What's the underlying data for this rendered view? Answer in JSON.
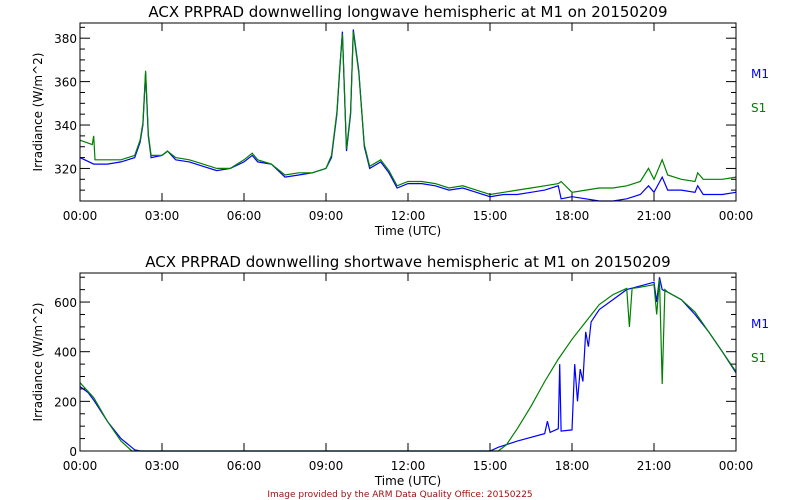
{
  "colors": {
    "M1": "#0000ff",
    "S1": "#008000",
    "credit": "#a01010"
  },
  "credit": "Image provided by the ARM Data Quality Office: 20150225",
  "chart_data": [
    {
      "type": "line",
      "title": "ACX PRPRAD downwelling longwave hemispheric at M1 on 20150209",
      "xlabel": "Time (UTC)",
      "ylabel": "Irradiance (W/m^2)",
      "xlim": [
        0,
        24
      ],
      "ylim": [
        305,
        387
      ],
      "xticks": [
        0,
        3,
        6,
        9,
        12,
        15,
        18,
        21,
        24
      ],
      "xtick_labels": [
        "00:00",
        "03:00",
        "06:00",
        "09:00",
        "12:00",
        "15:00",
        "18:00",
        "21:00",
        "00:00"
      ],
      "yticks": [
        320,
        340,
        360,
        380
      ],
      "ytick_labels": [
        "320",
        "340",
        "360",
        "380"
      ],
      "legend": [
        "M1",
        "S1"
      ],
      "legend_placement": "right",
      "series": [
        {
          "name": "M1",
          "color": "#0000ff",
          "x": [
            0,
            0.5,
            1,
            1.5,
            2,
            2.2,
            2.3,
            2.4,
            2.5,
            2.6,
            3,
            3.2,
            3.5,
            4,
            4.5,
            5,
            5.5,
            6,
            6.3,
            6.5,
            7,
            7.5,
            8,
            8.5,
            9,
            9.2,
            9.4,
            9.5,
            9.6,
            9.75,
            9.9,
            10,
            10.2,
            10.4,
            10.6,
            11,
            11.3,
            11.6,
            12,
            12.5,
            13,
            13.5,
            14,
            14.5,
            15,
            15.5,
            16,
            16.5,
            17,
            17.5,
            17.6,
            18,
            18.5,
            19,
            19.5,
            20,
            20.5,
            20.8,
            21,
            21.3,
            21.5,
            22,
            22.5,
            22.6,
            22.8,
            23.5,
            24
          ],
          "y": [
            325,
            322,
            322,
            323,
            325,
            332,
            340,
            364,
            335,
            325,
            326,
            328,
            324,
            323,
            321,
            319,
            320,
            323,
            326,
            323,
            322,
            316,
            317,
            318,
            320,
            325,
            345,
            365,
            383,
            328,
            345,
            384,
            365,
            330,
            320,
            323,
            318,
            311,
            313,
            313,
            312,
            310,
            311,
            309,
            307,
            308,
            308,
            309,
            310,
            312,
            306,
            307,
            306,
            305,
            305,
            306,
            308,
            312,
            309,
            316,
            310,
            310,
            309,
            312,
            308,
            308,
            309
          ]
        },
        {
          "name": "S1",
          "color": "#008000",
          "x": [
            0,
            0.45,
            0.5,
            0.55,
            1,
            1.5,
            2,
            2.2,
            2.3,
            2.4,
            2.5,
            2.6,
            3,
            3.2,
            3.5,
            4,
            4.5,
            5,
            5.5,
            6,
            6.3,
            6.5,
            7,
            7.5,
            8,
            8.5,
            9,
            9.2,
            9.4,
            9.5,
            9.6,
            9.75,
            9.9,
            10,
            10.2,
            10.4,
            10.6,
            11,
            11.3,
            11.6,
            12,
            12.5,
            13,
            13.5,
            14,
            14.5,
            15,
            15.5,
            16,
            16.5,
            17,
            17.5,
            17.6,
            18,
            18.5,
            19,
            19.5,
            20,
            20.5,
            20.8,
            21,
            21.3,
            21.5,
            22,
            22.5,
            22.6,
            22.8,
            23.5,
            24
          ],
          "y": [
            333,
            331,
            335,
            324,
            324,
            324,
            326,
            333,
            341,
            365,
            336,
            326,
            326,
            328,
            325,
            324,
            322,
            320,
            320,
            324,
            327,
            324,
            322,
            317,
            318,
            318,
            320,
            326,
            346,
            366,
            382,
            329,
            346,
            383,
            364,
            331,
            321,
            324,
            319,
            312,
            314,
            314,
            313,
            311,
            312,
            310,
            308,
            309,
            310,
            311,
            312,
            313,
            314,
            309,
            310,
            311,
            311,
            312,
            314,
            320,
            315,
            324,
            317,
            315,
            314,
            318,
            315,
            315,
            316
          ]
        }
      ]
    },
    {
      "type": "line",
      "title": "ACX PRPRAD downwelling shortwave hemispheric at M1 on 20150209",
      "xlabel": "Time (UTC)",
      "ylabel": "Irradiance (W/m^2)",
      "xlim": [
        0,
        24
      ],
      "ylim": [
        0,
        717
      ],
      "xticks": [
        0,
        3,
        6,
        9,
        12,
        15,
        18,
        21,
        24
      ],
      "xtick_labels": [
        "00:00",
        "03:00",
        "06:00",
        "09:00",
        "12:00",
        "15:00",
        "18:00",
        "21:00",
        "00:00"
      ],
      "yticks": [
        0,
        200,
        400,
        600
      ],
      "ytick_labels": [
        "0",
        "200",
        "400",
        "600"
      ],
      "legend": [
        "M1",
        "S1"
      ],
      "legend_placement": "right",
      "series": [
        {
          "name": "M1",
          "color": "#0000ff",
          "x": [
            0,
            0.3,
            0.5,
            1,
            1.5,
            2,
            2.2,
            15,
            15.3,
            16,
            17,
            17.1,
            17.2,
            17.5,
            17.55,
            17.6,
            18,
            18.1,
            18.2,
            18.3,
            18.4,
            18.5,
            18.6,
            18.7,
            19,
            19.5,
            20,
            20.5,
            21,
            21.1,
            21.2,
            21.3,
            21.5,
            22,
            22.5,
            23,
            23.5,
            24
          ],
          "y": [
            260,
            235,
            205,
            120,
            50,
            5,
            0,
            0,
            15,
            40,
            70,
            120,
            75,
            90,
            350,
            80,
            85,
            350,
            200,
            330,
            280,
            480,
            420,
            520,
            570,
            610,
            650,
            665,
            680,
            600,
            700,
            650,
            640,
            610,
            550,
            480,
            400,
            315
          ]
        },
        {
          "name": "S1",
          "color": "#008000",
          "x": [
            0,
            0.5,
            1,
            1.5,
            1.9,
            15.3,
            15.6,
            16,
            16.5,
            17,
            17.5,
            18,
            18.5,
            19,
            19.5,
            20,
            20.1,
            20.2,
            20.5,
            21,
            21.1,
            21.2,
            21.3,
            21.4,
            21.5,
            22,
            22.5,
            23,
            23.5,
            24
          ],
          "y": [
            275,
            215,
            120,
            40,
            0,
            0,
            25,
            90,
            180,
            280,
            370,
            450,
            520,
            590,
            630,
            655,
            500,
            655,
            660,
            670,
            550,
            690,
            270,
            650,
            640,
            610,
            560,
            480,
            400,
            320
          ]
        }
      ]
    }
  ]
}
